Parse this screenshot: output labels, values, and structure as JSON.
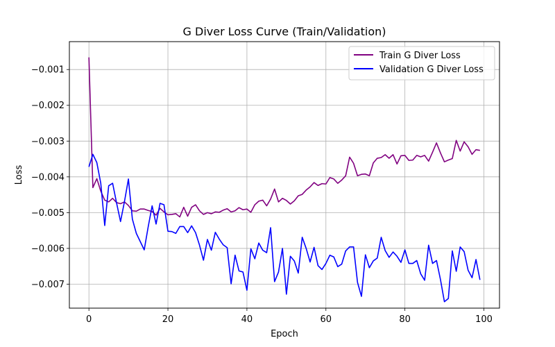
{
  "chart_data": {
    "type": "line",
    "title": "G Diver Loss Curve (Train/Validation)",
    "xlabel": "Epoch",
    "ylabel": "Loss",
    "xlim": [
      -4.95,
      103.95
    ],
    "ylim": [
      -0.00767,
      -0.00022
    ],
    "xticks": [
      0,
      20,
      40,
      60,
      80,
      100
    ],
    "yticks": [
      -0.007,
      -0.006,
      -0.005,
      -0.004,
      -0.003,
      -0.002,
      -0.001
    ],
    "xtick_labels": [
      "0",
      "20",
      "40",
      "60",
      "80",
      "100"
    ],
    "ytick_labels": [
      "−0.007",
      "−0.006",
      "−0.005",
      "−0.004",
      "−0.003",
      "−0.002",
      "−0.001"
    ],
    "grid": true,
    "legend_position": "top-right",
    "series": [
      {
        "name": "Train G Diver Loss",
        "color": "#800080",
        "values": [
          -0.00066,
          -0.0043,
          -0.00405,
          -0.0044,
          -0.00465,
          -0.0047,
          -0.0046,
          -0.00472,
          -0.00475,
          -0.0047,
          -0.0048,
          -0.00495,
          -0.00496,
          -0.0049,
          -0.0049,
          -0.00494,
          -0.00497,
          -0.00507,
          -0.00488,
          -0.00498,
          -0.00506,
          -0.00505,
          -0.00503,
          -0.00512,
          -0.00485,
          -0.0051,
          -0.00485,
          -0.00478,
          -0.00495,
          -0.00505,
          -0.005,
          -0.00503,
          -0.00498,
          -0.00499,
          -0.00493,
          -0.00489,
          -0.00498,
          -0.00495,
          -0.00486,
          -0.00492,
          -0.0049,
          -0.00499,
          -0.00478,
          -0.00468,
          -0.00465,
          -0.00481,
          -0.00462,
          -0.00434,
          -0.0047,
          -0.0046,
          -0.00466,
          -0.00476,
          -0.00467,
          -0.00453,
          -0.00449,
          -0.00437,
          -0.00428,
          -0.00416,
          -0.00424,
          -0.00419,
          -0.0042,
          -0.00402,
          -0.00406,
          -0.00418,
          -0.00409,
          -0.00397,
          -0.00345,
          -0.00362,
          -0.00397,
          -0.00393,
          -0.00392,
          -0.00397,
          -0.00361,
          -0.00348,
          -0.00346,
          -0.00338,
          -0.00348,
          -0.00338,
          -0.00364,
          -0.00341,
          -0.0034,
          -0.00354,
          -0.00353,
          -0.0034,
          -0.00344,
          -0.0034,
          -0.00356,
          -0.00331,
          -0.00305,
          -0.00333,
          -0.00358,
          -0.00353,
          -0.00349,
          -0.00298,
          -0.00328,
          -0.00302,
          -0.00316,
          -0.00337,
          -0.00324,
          -0.00326
        ]
      },
      {
        "name": "Validation G Diver Loss",
        "color": "#0000ff",
        "values": [
          -0.00372,
          -0.00337,
          -0.0036,
          -0.00418,
          -0.00536,
          -0.00425,
          -0.00418,
          -0.00473,
          -0.00525,
          -0.00469,
          -0.00406,
          -0.00518,
          -0.00558,
          -0.00581,
          -0.00604,
          -0.0054,
          -0.00481,
          -0.00532,
          -0.00474,
          -0.00478,
          -0.00552,
          -0.00553,
          -0.00558,
          -0.00539,
          -0.00539,
          -0.00556,
          -0.00537,
          -0.00556,
          -0.00591,
          -0.00633,
          -0.00575,
          -0.00605,
          -0.00555,
          -0.00574,
          -0.0059,
          -0.00598,
          -0.00699,
          -0.00619,
          -0.00663,
          -0.00666,
          -0.00717,
          -0.00601,
          -0.00629,
          -0.00585,
          -0.00605,
          -0.00612,
          -0.00542,
          -0.00693,
          -0.00666,
          -0.006,
          -0.00728,
          -0.00622,
          -0.00635,
          -0.00669,
          -0.00569,
          -0.006,
          -0.00638,
          -0.00597,
          -0.00648,
          -0.00659,
          -0.00642,
          -0.00619,
          -0.00624,
          -0.00651,
          -0.00644,
          -0.00607,
          -0.00596,
          -0.00596,
          -0.00695,
          -0.00734,
          -0.00618,
          -0.00654,
          -0.00635,
          -0.00627,
          -0.00569,
          -0.00606,
          -0.00625,
          -0.0061,
          -0.00622,
          -0.00639,
          -0.00604,
          -0.00642,
          -0.00642,
          -0.00634,
          -0.00671,
          -0.00689,
          -0.00591,
          -0.00642,
          -0.00634,
          -0.00687,
          -0.00749,
          -0.0074,
          -0.00607,
          -0.00664,
          -0.00596,
          -0.00609,
          -0.00661,
          -0.00682,
          -0.00631,
          -0.00688
        ]
      }
    ]
  }
}
